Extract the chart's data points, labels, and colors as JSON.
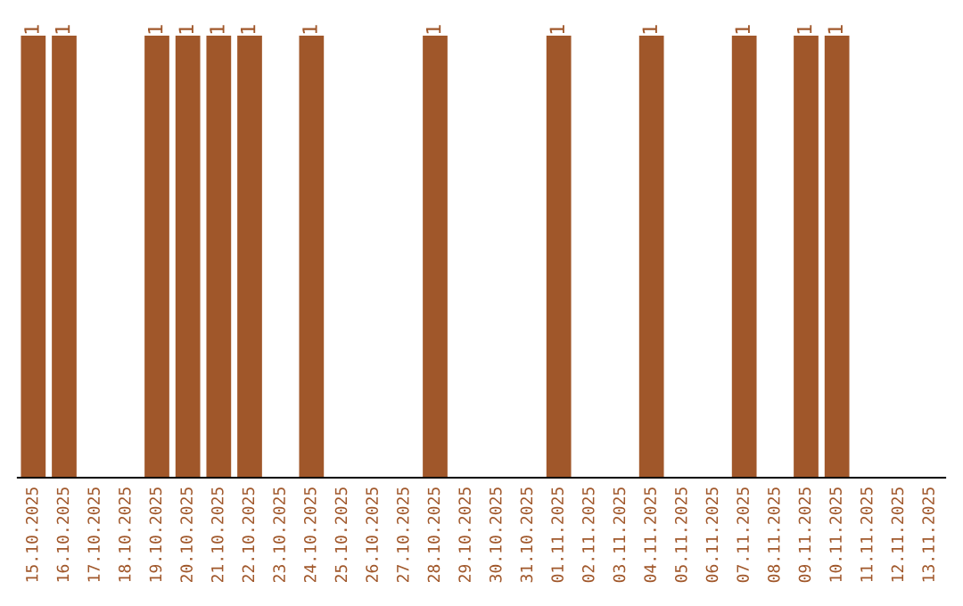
{
  "chart_data": {
    "type": "bar",
    "ylim": [
      0,
      1
    ],
    "color": "#a0572a",
    "categories": [
      "15.10.2025",
      "16.10.2025",
      "17.10.2025",
      "18.10.2025",
      "19.10.2025",
      "20.10.2025",
      "21.10.2025",
      "22.10.2025",
      "23.10.2025",
      "24.10.2025",
      "25.10.2025",
      "26.10.2025",
      "27.10.2025",
      "28.10.2025",
      "29.10.2025",
      "30.10.2025",
      "31.10.2025",
      "01.11.2025",
      "02.11.2025",
      "03.11.2025",
      "04.11.2025",
      "05.11.2025",
      "06.11.2025",
      "07.11.2025",
      "08.11.2025",
      "09.11.2025",
      "10.11.2025",
      "11.11.2025",
      "12.11.2025",
      "13.11.2025"
    ],
    "values": [
      1,
      1,
      0,
      0,
      1,
      1,
      1,
      1,
      0,
      1,
      0,
      0,
      0,
      1,
      0,
      0,
      0,
      1,
      0,
      0,
      1,
      0,
      0,
      1,
      0,
      1,
      1,
      0,
      0,
      0
    ],
    "value_labels": [
      "1",
      "1",
      null,
      null,
      "1",
      "1",
      "1",
      "1",
      null,
      "1",
      null,
      null,
      null,
      "1",
      null,
      null,
      null,
      "1",
      null,
      null,
      "1",
      null,
      null,
      "1",
      null,
      "1",
      "1",
      null,
      null,
      null
    ],
    "grid": false,
    "legend": false
  }
}
